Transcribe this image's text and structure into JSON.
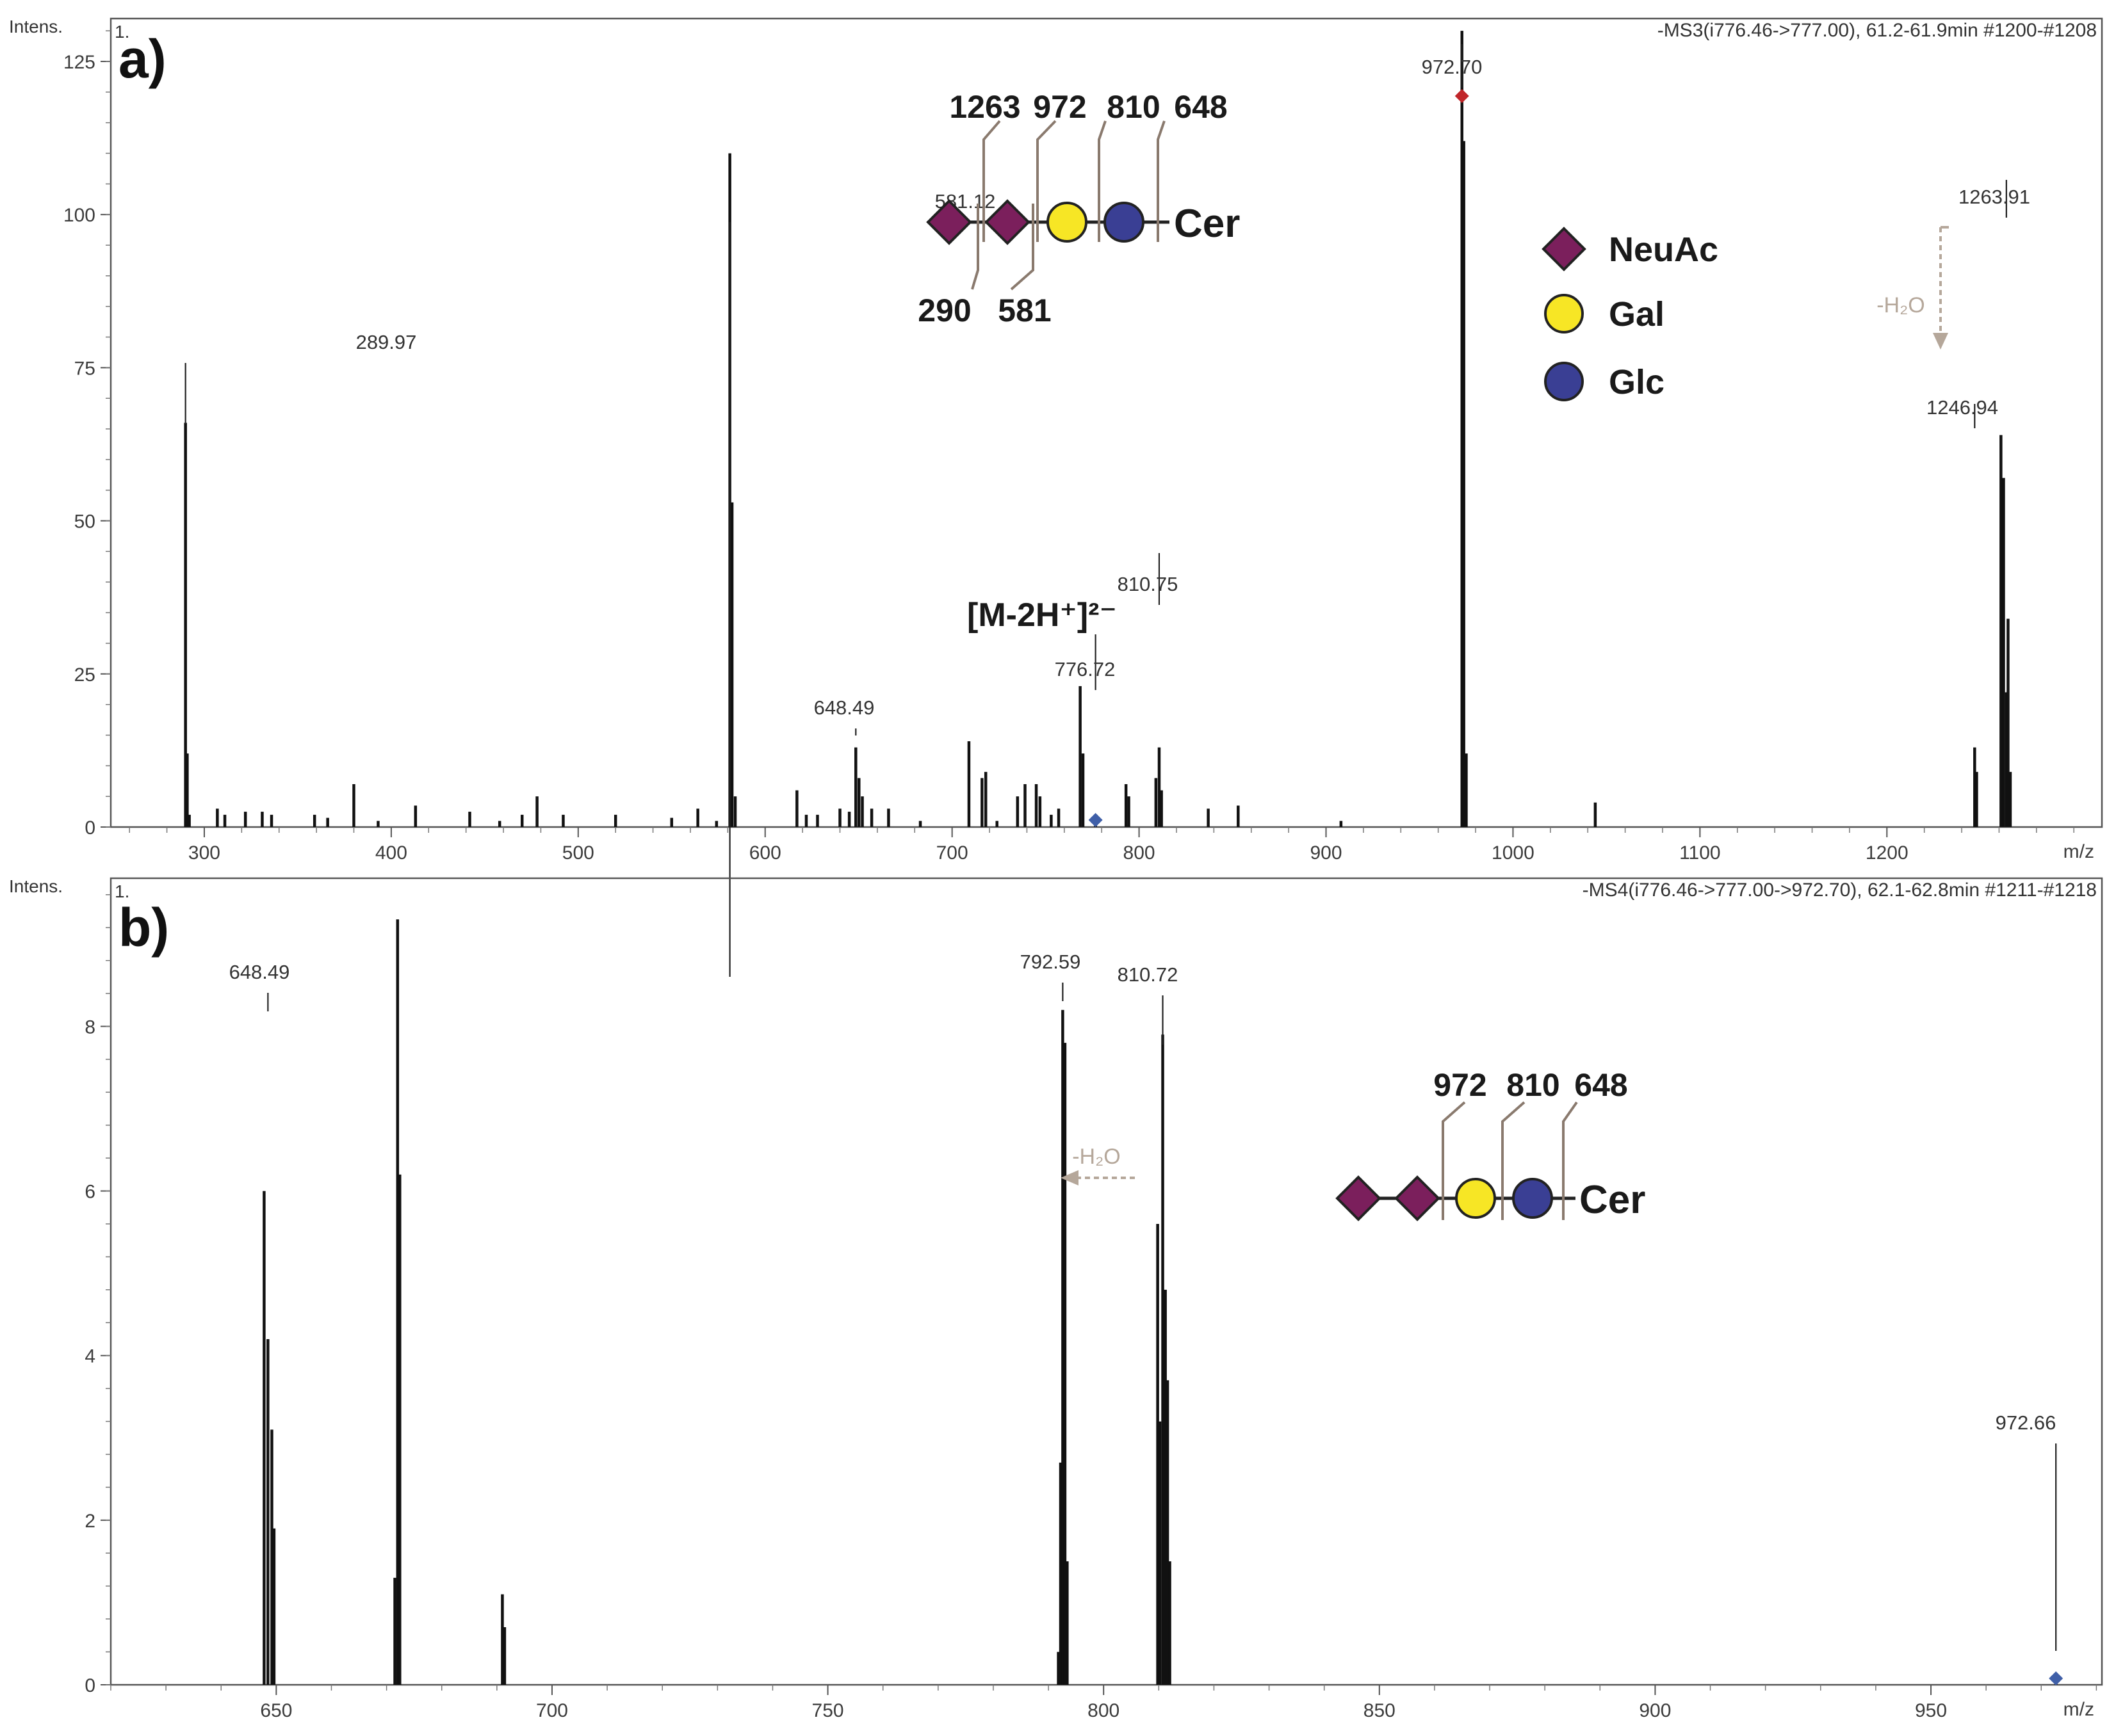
{
  "chart_data": [
    {
      "type": "bar",
      "panel": "a)",
      "ylabel": "Intens.",
      "y_unit_marker": "1.",
      "xlabel": "m/z",
      "header": "-MS3(i776.46->777.00), 61.2-61.9min #1200-#1208",
      "xlim": [
        250,
        1315
      ],
      "ylim": [
        0,
        132
      ],
      "x_ticks": [
        300,
        400,
        500,
        600,
        700,
        800,
        900,
        1000,
        1100,
        1200
      ],
      "y_ticks": [
        0,
        25,
        50,
        75,
        100,
        125
      ],
      "grid": false,
      "peaks": [
        {
          "x": 289.97,
          "y": 66,
          "label": "289.97"
        },
        {
          "x": 290.9,
          "y": 12
        },
        {
          "x": 292,
          "y": 2
        },
        {
          "x": 307,
          "y": 3
        },
        {
          "x": 311,
          "y": 2
        },
        {
          "x": 322,
          "y": 2.5
        },
        {
          "x": 331,
          "y": 2.5
        },
        {
          "x": 336,
          "y": 2
        },
        {
          "x": 359,
          "y": 2
        },
        {
          "x": 366,
          "y": 1.5
        },
        {
          "x": 380,
          "y": 7
        },
        {
          "x": 393,
          "y": 1
        },
        {
          "x": 413,
          "y": 3.5
        },
        {
          "x": 442,
          "y": 2.5
        },
        {
          "x": 458,
          "y": 1
        },
        {
          "x": 470,
          "y": 2
        },
        {
          "x": 478,
          "y": 5
        },
        {
          "x": 492,
          "y": 2
        },
        {
          "x": 520,
          "y": 2
        },
        {
          "x": 550,
          "y": 1.5
        },
        {
          "x": 564,
          "y": 3
        },
        {
          "x": 574,
          "y": 1
        },
        {
          "x": 581.12,
          "y": 110,
          "label": "581.12"
        },
        {
          "x": 582.3,
          "y": 53
        },
        {
          "x": 584,
          "y": 5
        },
        {
          "x": 617,
          "y": 6
        },
        {
          "x": 622,
          "y": 2
        },
        {
          "x": 628,
          "y": 2
        },
        {
          "x": 640,
          "y": 3
        },
        {
          "x": 645,
          "y": 2.5
        },
        {
          "x": 648.49,
          "y": 13,
          "label": "648.49"
        },
        {
          "x": 650.2,
          "y": 8
        },
        {
          "x": 652,
          "y": 5
        },
        {
          "x": 657,
          "y": 3
        },
        {
          "x": 666,
          "y": 3
        },
        {
          "x": 683,
          "y": 1
        },
        {
          "x": 709,
          "y": 14
        },
        {
          "x": 716,
          "y": 8
        },
        {
          "x": 718,
          "y": 9
        },
        {
          "x": 724,
          "y": 1
        },
        {
          "x": 735,
          "y": 5
        },
        {
          "x": 739,
          "y": 7
        },
        {
          "x": 745,
          "y": 7
        },
        {
          "x": 747,
          "y": 5
        },
        {
          "x": 753,
          "y": 2
        },
        {
          "x": 757,
          "y": 3
        },
        {
          "x": 768.5,
          "y": 23
        },
        {
          "x": 770,
          "y": 12
        },
        {
          "x": 776.72,
          "y": 1,
          "label": "776.72"
        },
        {
          "x": 793,
          "y": 7
        },
        {
          "x": 794.5,
          "y": 5
        },
        {
          "x": 809,
          "y": 8
        },
        {
          "x": 810.75,
          "y": 13,
          "label": "810.75"
        },
        {
          "x": 812,
          "y": 6
        },
        {
          "x": 837,
          "y": 3
        },
        {
          "x": 853,
          "y": 3.5
        },
        {
          "x": 908,
          "y": 1
        },
        {
          "x": 972.7,
          "y": 130,
          "label": "972.70"
        },
        {
          "x": 973.7,
          "y": 112
        },
        {
          "x": 975,
          "y": 12
        },
        {
          "x": 1044,
          "y": 4
        },
        {
          "x": 1246.94,
          "y": 13,
          "label": "1246.94"
        },
        {
          "x": 1248,
          "y": 9
        },
        {
          "x": 1261,
          "y": 64
        },
        {
          "x": 1262.4,
          "y": 57
        },
        {
          "x": 1263.91,
          "y": 22,
          "label": "1263.91"
        },
        {
          "x": 1264.8,
          "y": 34
        },
        {
          "x": 1266,
          "y": 9
        }
      ],
      "precursor": {
        "x": 776.72
      },
      "annotations": {
        "ion_label": "[M-2H⁺]²⁻",
        "water_loss": "-H₂O",
        "structure_top_fragments": [
          "1263",
          "972",
          "810",
          "648"
        ],
        "structure_bottom_fragments": [
          "290",
          "581"
        ],
        "aglycone": "Cer",
        "legend": [
          "NeuAc",
          "Gal",
          "Glc"
        ]
      },
      "colors": {
        "neuac": "#7b1f5c",
        "gal": "#f7e625",
        "glc": "#3a3f94",
        "precursor_marker_a": "#c0262a",
        "precursor_marker_b": "#3f5fa8",
        "water_arrow": "#b5a79a"
      }
    },
    {
      "type": "bar",
      "panel": "b)",
      "ylabel": "Intens.",
      "y_unit_marker": "1.",
      "xlabel": "m/z",
      "header": "-MS4(i776.46->777.00->972.70), 62.1-62.8min #1211-#1218",
      "xlim": [
        620,
        981
      ],
      "ylim": [
        0,
        9.8
      ],
      "x_ticks": [
        650,
        700,
        750,
        800,
        850,
        900,
        950
      ],
      "y_ticks": [
        0,
        2,
        4,
        6,
        8
      ],
      "grid": false,
      "peaks": [
        {
          "x": 647.8,
          "y": 6.0
        },
        {
          "x": 648.49,
          "y": 4.2,
          "label": "648.49"
        },
        {
          "x": 649.2,
          "y": 3.1
        },
        {
          "x": 649.6,
          "y": 1.9
        },
        {
          "x": 671.5,
          "y": 1.3
        },
        {
          "x": 672,
          "y": 9.3
        },
        {
          "x": 672.4,
          "y": 6.2
        },
        {
          "x": 691,
          "y": 1.1
        },
        {
          "x": 691.4,
          "y": 0.7
        },
        {
          "x": 791.8,
          "y": 0.4
        },
        {
          "x": 792.2,
          "y": 2.7
        },
        {
          "x": 792.59,
          "y": 8.2,
          "label": "792.59"
        },
        {
          "x": 793,
          "y": 7.8
        },
        {
          "x": 793.4,
          "y": 1.5
        },
        {
          "x": 809.8,
          "y": 5.6
        },
        {
          "x": 810.2,
          "y": 3.2
        },
        {
          "x": 810.72,
          "y": 7.9,
          "label": "810.72"
        },
        {
          "x": 811.2,
          "y": 4.8
        },
        {
          "x": 811.6,
          "y": 3.7
        },
        {
          "x": 812,
          "y": 1.5
        },
        {
          "x": 972.66,
          "y": 0.08,
          "label": "972.66"
        }
      ],
      "precursor": {
        "x": 972.66
      },
      "annotations": {
        "water_loss": "-H₂O",
        "structure_top_fragments": [
          "972",
          "810",
          "648"
        ],
        "aglycone": "Cer"
      }
    }
  ]
}
